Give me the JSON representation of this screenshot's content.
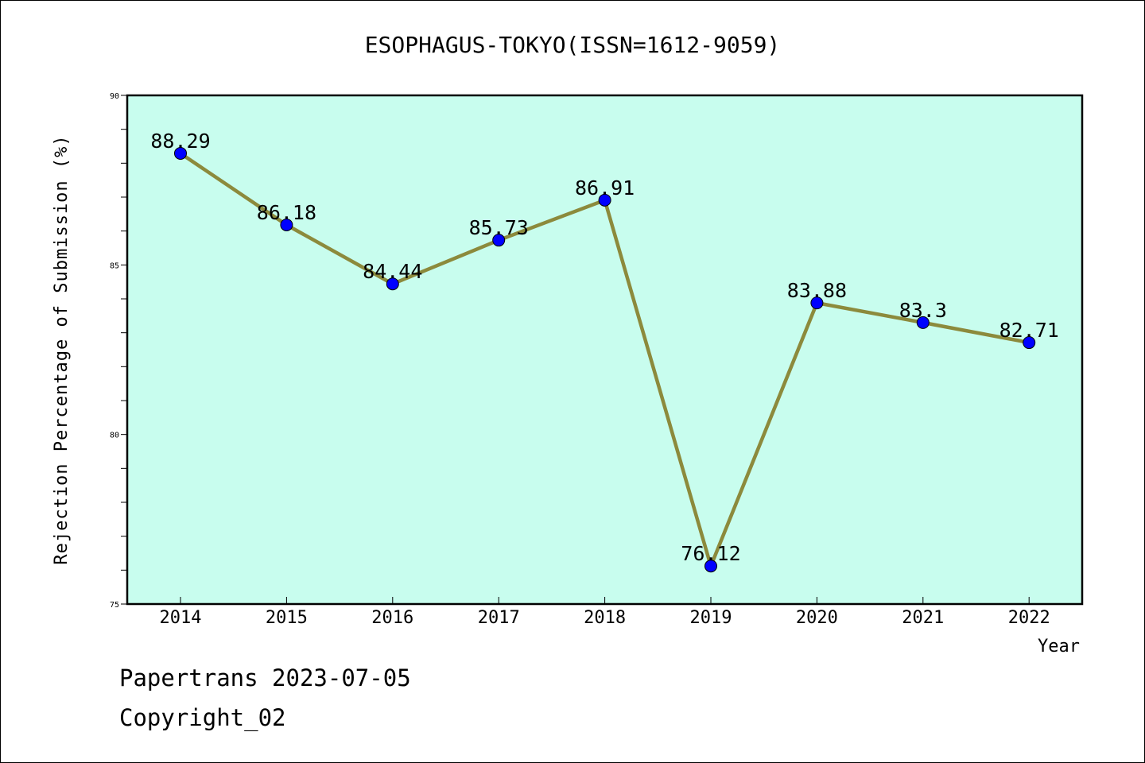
{
  "chart_data": {
    "type": "line",
    "title": "ESOPHAGUS-TOKYO(ISSN=1612-9059)",
    "xlabel": "Year",
    "ylabel": "Rejection Percentage of Submission (%)",
    "categories": [
      "2014",
      "2015",
      "2016",
      "2017",
      "2018",
      "2019",
      "2020",
      "2021",
      "2022"
    ],
    "values": [
      88.29,
      86.18,
      84.44,
      85.73,
      86.91,
      76.12,
      83.88,
      83.3,
      82.71
    ],
    "data_labels": [
      "88.29",
      "86.18",
      "84.44",
      "85.73",
      "86.91",
      "76.12",
      "83.88",
      "83.3",
      "82.71"
    ],
    "ylim": [
      75,
      90
    ],
    "yticks": [
      75,
      80,
      85,
      90
    ],
    "grid": false,
    "colors": {
      "plot_background": "#c8fdee",
      "line": "#8c8a3c",
      "marker": "#0000ff"
    }
  },
  "footer": {
    "line1": "Papertrans 2023-07-05",
    "line2": "Copyright_02"
  }
}
